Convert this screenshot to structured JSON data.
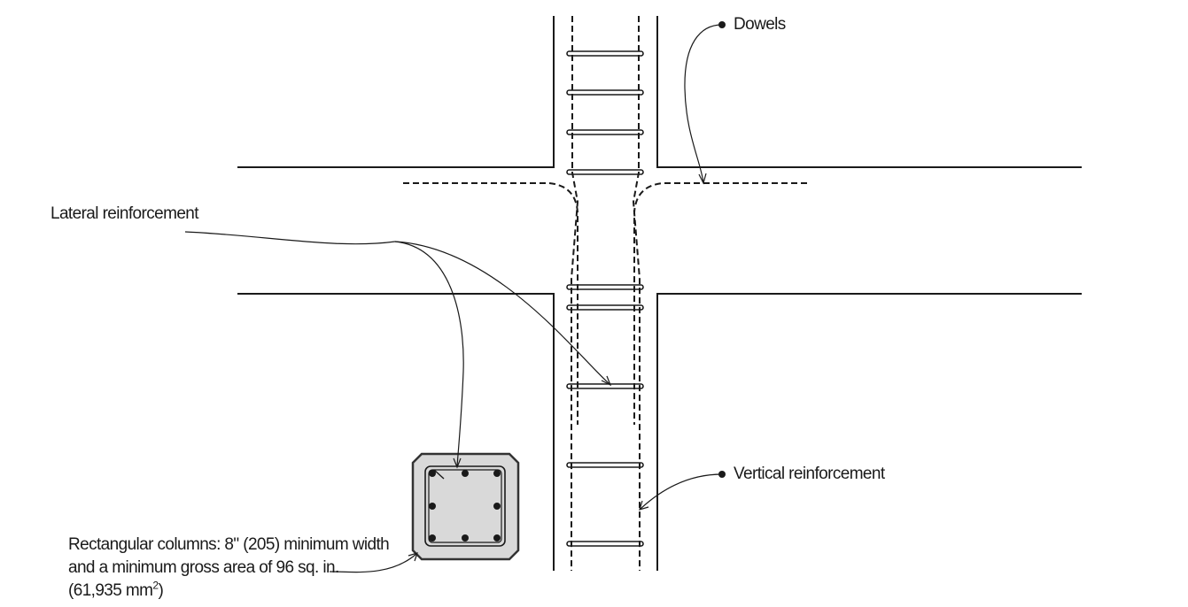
{
  "labels": {
    "dowels": "Dowels",
    "lateral_reinforcement": "Lateral reinforcement",
    "vertical_reinforcement": "Vertical reinforcement",
    "column_note": {
      "line1": "Rectangular columns: 8\" (205) minimum width",
      "line2": "and a minimum gross area of 96 sq. in.",
      "line3_prefix": "(61,935 mm",
      "line3_sup": "2",
      "line3_suffix": ")"
    }
  },
  "colors": {
    "line": "#1a1a1a",
    "section_fill": "#d9d9d9",
    "section_outline": "#333333"
  }
}
